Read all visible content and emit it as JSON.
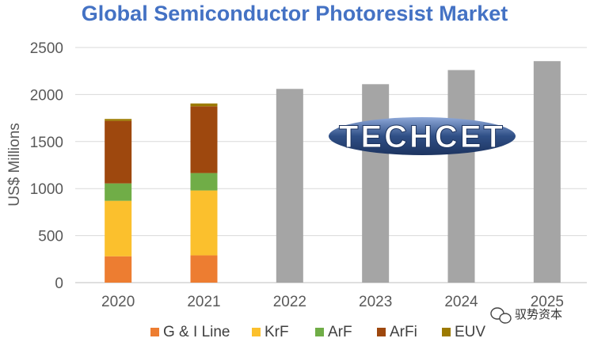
{
  "chart_data": {
    "type": "bar",
    "stacked": true,
    "title": "Global Semiconductor Photoresist Market",
    "ylabel": "US$ Millions",
    "xlabel": "",
    "ylim": [
      0,
      2500
    ],
    "yticks": [
      0,
      500,
      1000,
      1500,
      2000,
      2500
    ],
    "grid": true,
    "legend_position": "bottom",
    "categories": [
      "2020",
      "2021",
      "2022",
      "2023",
      "2024",
      "2025"
    ],
    "series": [
      {
        "name": "G & I Line",
        "color": "#ed7d31",
        "values": [
          280,
          290,
          null,
          null,
          null,
          null
        ]
      },
      {
        "name": "KrF",
        "color": "#fbc02d",
        "values": [
          590,
          690,
          null,
          null,
          null,
          null
        ]
      },
      {
        "name": "ArF",
        "color": "#70ad47",
        "values": [
          185,
          185,
          null,
          null,
          null,
          null
        ]
      },
      {
        "name": "ArFi",
        "color": "#9e480e",
        "values": [
          665,
          710,
          null,
          null,
          null,
          null
        ]
      },
      {
        "name": "EUV",
        "color": "#9c7a00",
        "values": [
          20,
          30,
          null,
          null,
          null,
          null
        ]
      },
      {
        "name": "",
        "color": "#a5a5a5",
        "values": [
          null,
          null,
          2060,
          2110,
          2260,
          2355
        ]
      }
    ]
  },
  "logo": {
    "text": "TECHCET",
    "colors": {
      "bar": "#2f4f86",
      "highlight": "#6f8fc9"
    }
  },
  "watermark": {
    "text": "驭势资本",
    "icon": "wechat-icon"
  }
}
